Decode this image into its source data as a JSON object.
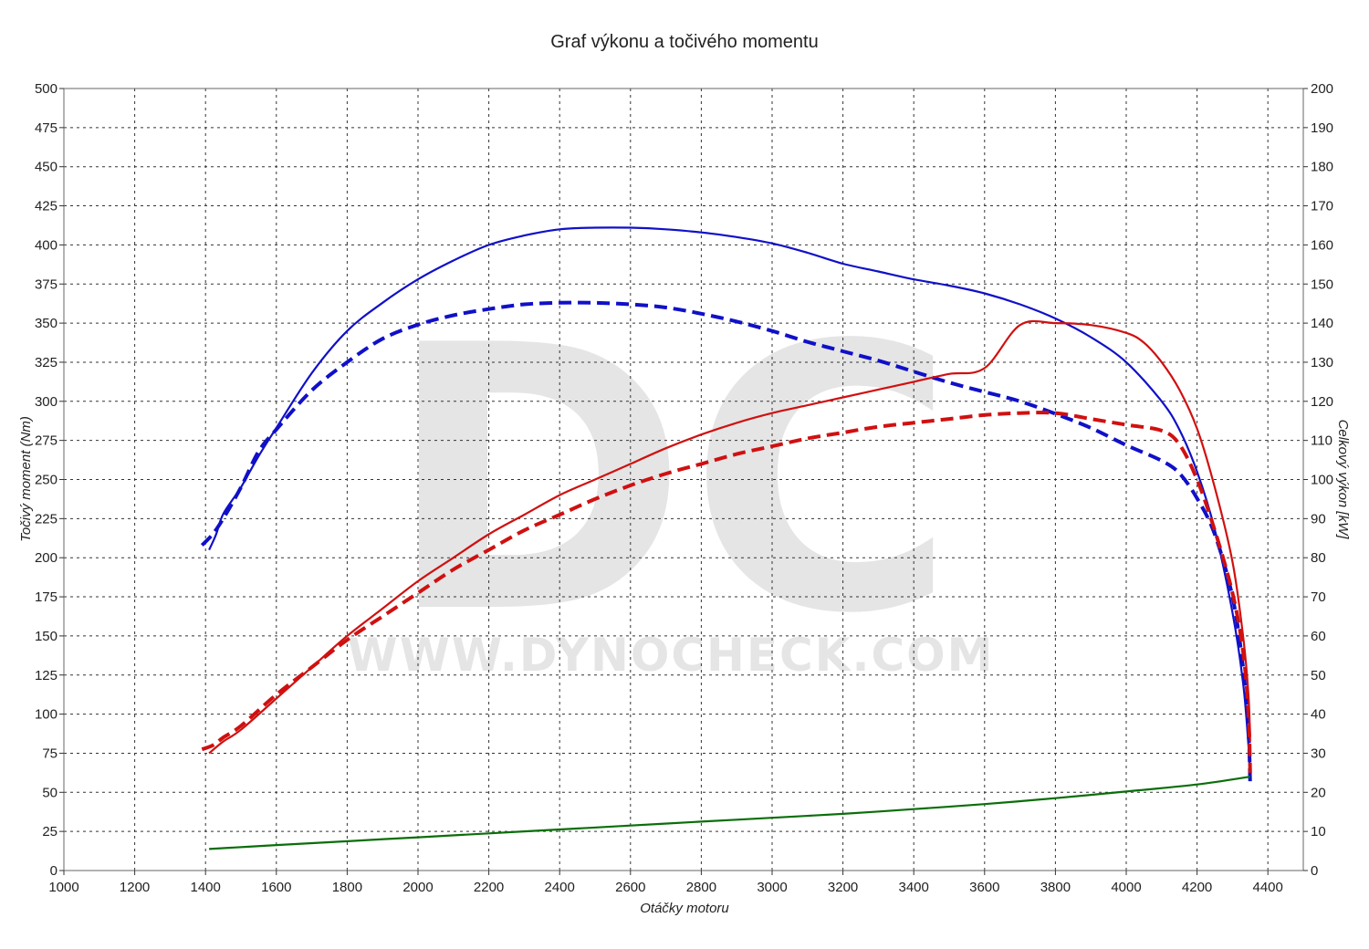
{
  "chart_data": {
    "type": "line",
    "title": "Graf výkonu a točivého momentu",
    "xlabel": "Otáčky motoru",
    "ylabel_left": "Točivý moment (Nm)",
    "ylabel_right": "Celkový výkon [kW]",
    "xlim": [
      1000,
      4500
    ],
    "ylim_left": [
      0,
      500
    ],
    "ylim_right": [
      0,
      200
    ],
    "x_ticks": [
      1000,
      1200,
      1400,
      1600,
      1800,
      2000,
      2200,
      2400,
      2600,
      2800,
      3000,
      3200,
      3400,
      3600,
      3800,
      4000,
      4200,
      4400
    ],
    "y_ticks_left": [
      0,
      25,
      50,
      75,
      100,
      125,
      150,
      175,
      200,
      225,
      250,
      275,
      300,
      325,
      350,
      375,
      400,
      425,
      450,
      475,
      500
    ],
    "y_ticks_right": [
      0,
      10,
      20,
      30,
      40,
      50,
      60,
      70,
      80,
      90,
      100,
      110,
      120,
      130,
      140,
      150,
      160,
      170,
      180,
      190,
      200
    ],
    "grid": true,
    "watermark": {
      "letters": "DC",
      "url": "WWW.DYNOCHECK.COM"
    },
    "series": [
      {
        "id": "torque-tuned",
        "axis": "left",
        "color": "#1010c8",
        "dash": false,
        "points": [
          [
            1410,
            205
          ],
          [
            1430,
            215
          ],
          [
            1450,
            228
          ],
          [
            1500,
            245
          ],
          [
            1550,
            265
          ],
          [
            1600,
            283
          ],
          [
            1700,
            318
          ],
          [
            1800,
            345
          ],
          [
            1900,
            363
          ],
          [
            2000,
            378
          ],
          [
            2100,
            390
          ],
          [
            2200,
            400
          ],
          [
            2300,
            406
          ],
          [
            2400,
            410
          ],
          [
            2500,
            411
          ],
          [
            2600,
            411
          ],
          [
            2700,
            410
          ],
          [
            2800,
            408
          ],
          [
            2900,
            405
          ],
          [
            3000,
            401
          ],
          [
            3100,
            395
          ],
          [
            3200,
            388
          ],
          [
            3300,
            383
          ],
          [
            3400,
            378
          ],
          [
            3500,
            374
          ],
          [
            3600,
            369
          ],
          [
            3700,
            362
          ],
          [
            3800,
            353
          ],
          [
            3900,
            341
          ],
          [
            4000,
            325
          ],
          [
            4100,
            300
          ],
          [
            4150,
            282
          ],
          [
            4200,
            255
          ],
          [
            4250,
            218
          ],
          [
            4300,
            165
          ],
          [
            4330,
            120
          ],
          [
            4345,
            80
          ],
          [
            4350,
            60
          ]
        ]
      },
      {
        "id": "torque-stock",
        "axis": "left",
        "color": "#1010c8",
        "dash": true,
        "points": [
          [
            1390,
            208
          ],
          [
            1420,
            215
          ],
          [
            1450,
            225
          ],
          [
            1500,
            245
          ],
          [
            1550,
            268
          ],
          [
            1600,
            282
          ],
          [
            1700,
            307
          ],
          [
            1800,
            325
          ],
          [
            1900,
            340
          ],
          [
            2000,
            349
          ],
          [
            2100,
            355
          ],
          [
            2200,
            359
          ],
          [
            2300,
            362
          ],
          [
            2400,
            363
          ],
          [
            2500,
            363
          ],
          [
            2600,
            362
          ],
          [
            2700,
            360
          ],
          [
            2800,
            356
          ],
          [
            2900,
            351
          ],
          [
            3000,
            345
          ],
          [
            3100,
            338
          ],
          [
            3200,
            332
          ],
          [
            3300,
            326
          ],
          [
            3400,
            319
          ],
          [
            3500,
            312
          ],
          [
            3600,
            306
          ],
          [
            3700,
            300
          ],
          [
            3800,
            292
          ],
          [
            3900,
            283
          ],
          [
            4000,
            272
          ],
          [
            4100,
            262
          ],
          [
            4150,
            254
          ],
          [
            4200,
            238
          ],
          [
            4250,
            215
          ],
          [
            4300,
            175
          ],
          [
            4330,
            130
          ],
          [
            4345,
            90
          ],
          [
            4350,
            55
          ]
        ]
      },
      {
        "id": "power-tuned",
        "axis": "right",
        "color": "#d01010",
        "dash": false,
        "points": [
          [
            1410,
            30
          ],
          [
            1450,
            33
          ],
          [
            1500,
            36
          ],
          [
            1600,
            44
          ],
          [
            1700,
            52
          ],
          [
            1800,
            60
          ],
          [
            1900,
            67
          ],
          [
            2000,
            74
          ],
          [
            2100,
            80
          ],
          [
            2200,
            86
          ],
          [
            2300,
            91
          ],
          [
            2400,
            96
          ],
          [
            2500,
            100
          ],
          [
            2600,
            104
          ],
          [
            2700,
            108
          ],
          [
            2800,
            111.5
          ],
          [
            2900,
            114.5
          ],
          [
            3000,
            117
          ],
          [
            3100,
            119
          ],
          [
            3200,
            121
          ],
          [
            3300,
            123
          ],
          [
            3400,
            125
          ],
          [
            3500,
            127
          ],
          [
            3600,
            128.5
          ],
          [
            3700,
            139.5
          ],
          [
            3800,
            140
          ],
          [
            3900,
            139.5
          ],
          [
            4000,
            137.5
          ],
          [
            4050,
            135
          ],
          [
            4100,
            130
          ],
          [
            4150,
            123
          ],
          [
            4200,
            113
          ],
          [
            4250,
            98
          ],
          [
            4300,
            79
          ],
          [
            4330,
            60
          ],
          [
            4345,
            45
          ],
          [
            4350,
            33
          ]
        ]
      },
      {
        "id": "power-stock",
        "axis": "right",
        "color": "#d01010",
        "dash": true,
        "points": [
          [
            1390,
            31
          ],
          [
            1420,
            32
          ],
          [
            1450,
            34
          ],
          [
            1500,
            37
          ],
          [
            1600,
            45
          ],
          [
            1700,
            52
          ],
          [
            1800,
            59
          ],
          [
            1900,
            65
          ],
          [
            2000,
            71
          ],
          [
            2100,
            77
          ],
          [
            2200,
            82
          ],
          [
            2300,
            87
          ],
          [
            2400,
            91
          ],
          [
            2500,
            95
          ],
          [
            2600,
            98.5
          ],
          [
            2700,
            101.5
          ],
          [
            2800,
            104
          ],
          [
            2900,
            106.5
          ],
          [
            3000,
            108.5
          ],
          [
            3100,
            110.5
          ],
          [
            3200,
            112
          ],
          [
            3300,
            113.5
          ],
          [
            3400,
            114.5
          ],
          [
            3500,
            115.5
          ],
          [
            3600,
            116.5
          ],
          [
            3700,
            117
          ],
          [
            3800,
            117
          ],
          [
            3900,
            115.5
          ],
          [
            4000,
            114
          ],
          [
            4100,
            112.5
          ],
          [
            4150,
            109
          ],
          [
            4200,
            100
          ],
          [
            4250,
            87
          ],
          [
            4300,
            71
          ],
          [
            4330,
            56
          ],
          [
            4345,
            40
          ],
          [
            4350,
            25
          ]
        ]
      },
      {
        "id": "loss",
        "axis": "right",
        "color": "#0a6e0a",
        "dash": false,
        "points": [
          [
            1410,
            5.5
          ],
          [
            1600,
            6.5
          ],
          [
            1800,
            7.5
          ],
          [
            2000,
            8.5
          ],
          [
            2200,
            9.5
          ],
          [
            2400,
            10.5
          ],
          [
            2600,
            11.5
          ],
          [
            2800,
            12.5
          ],
          [
            3000,
            13.5
          ],
          [
            3200,
            14.5
          ],
          [
            3400,
            15.7
          ],
          [
            3600,
            17
          ],
          [
            3800,
            18.5
          ],
          [
            4000,
            20.2
          ],
          [
            4200,
            22
          ],
          [
            4350,
            24
          ]
        ]
      }
    ]
  }
}
